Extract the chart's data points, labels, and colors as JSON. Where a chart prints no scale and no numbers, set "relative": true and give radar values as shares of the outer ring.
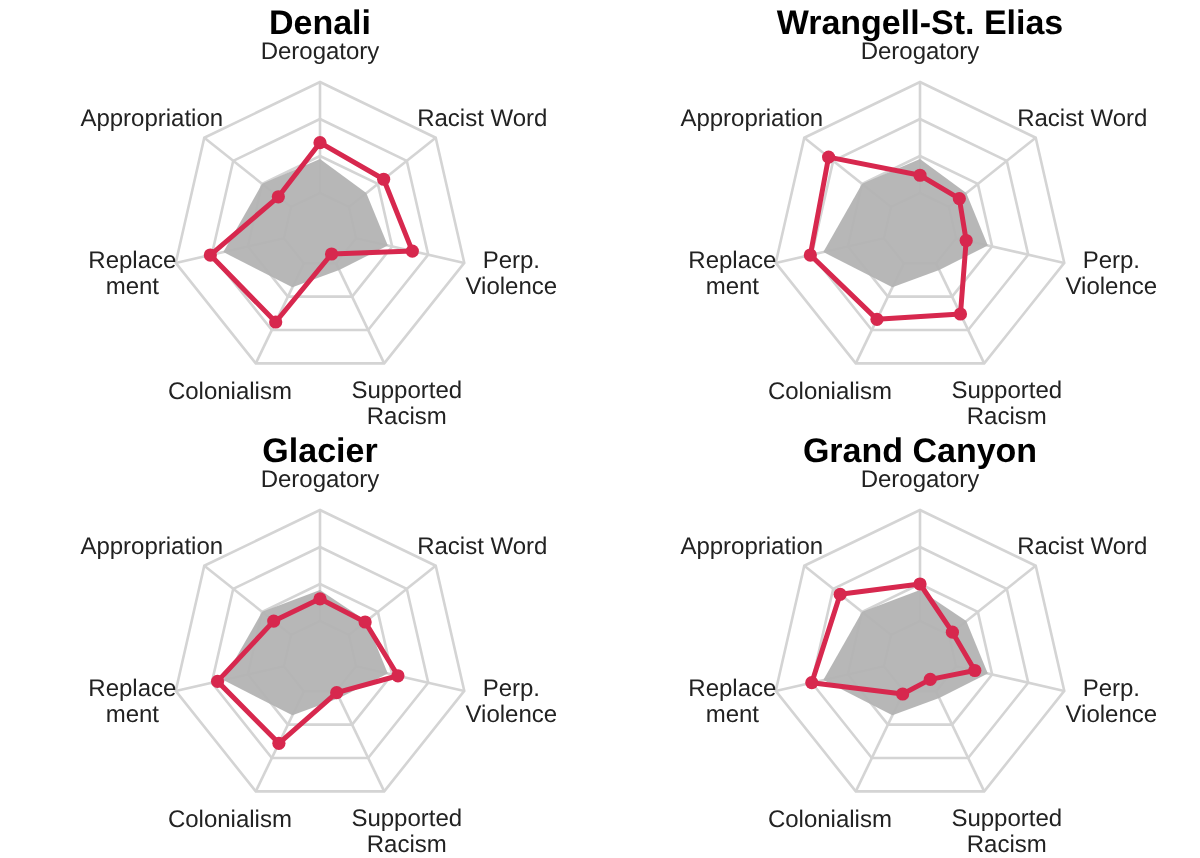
{
  "chart_data": [
    {
      "type": "radar",
      "title": "Denali",
      "relative": true,
      "grid": true,
      "categories": [
        "Derogatory",
        "Racist Word",
        "Perp.\nViolence",
        "Supported\nRacism",
        "Colonialism",
        "Replace\nment",
        "Appropriation"
      ],
      "series": [
        {
          "type": "area",
          "color": "#b3b3b3",
          "marker": "none",
          "values": [
            0.48,
            0.4,
            0.47,
            0.3,
            0.43,
            0.67,
            0.5
          ]
        },
        {
          "color": "#d7284e",
          "marker": "circle",
          "values": [
            0.59,
            0.55,
            0.64,
            0.18,
            0.69,
            0.76,
            0.36
          ]
        }
      ]
    },
    {
      "type": "radar",
      "title": "Wrangell-St. Elias",
      "relative": true,
      "grid": true,
      "categories": [
        "Derogatory",
        "Racist Word",
        "Perp.\nViolence",
        "Supported\nRacism",
        "Colonialism",
        "Replace\nment",
        "Appropriation"
      ],
      "series": [
        {
          "type": "area",
          "color": "#b3b3b3",
          "marker": "none",
          "values": [
            0.48,
            0.4,
            0.47,
            0.3,
            0.43,
            0.67,
            0.5
          ]
        },
        {
          "color": "#d7284e",
          "marker": "circle",
          "values": [
            0.37,
            0.34,
            0.32,
            0.63,
            0.67,
            0.76,
            0.79
          ]
        }
      ]
    },
    {
      "type": "radar",
      "title": "Glacier",
      "relative": true,
      "grid": true,
      "categories": [
        "Derogatory",
        "Racist Word",
        "Perp.\nViolence",
        "Supported\nRacism",
        "Colonialism",
        "Replace\nment",
        "Appropriation"
      ],
      "series": [
        {
          "type": "area",
          "color": "#b3b3b3",
          "marker": "none",
          "values": [
            0.46,
            0.4,
            0.47,
            0.3,
            0.43,
            0.67,
            0.5
          ]
        },
        {
          "color": "#d7284e",
          "marker": "circle",
          "values": [
            0.4,
            0.39,
            0.54,
            0.26,
            0.64,
            0.71,
            0.4
          ]
        }
      ]
    },
    {
      "type": "radar",
      "title": "Grand Canyon",
      "relative": true,
      "grid": true,
      "categories": [
        "Derogatory",
        "Racist Word",
        "Perp.\nViolence",
        "Supported\nRacism",
        "Colonialism",
        "Replace\nment",
        "Appropriation"
      ],
      "series": [
        {
          "type": "area",
          "color": "#b3b3b3",
          "marker": "none",
          "values": [
            0.46,
            0.4,
            0.47,
            0.3,
            0.43,
            0.67,
            0.5
          ]
        },
        {
          "color": "#d7284e",
          "marker": "circle",
          "values": [
            0.5,
            0.28,
            0.38,
            0.16,
            0.27,
            0.75,
            0.69
          ]
        }
      ]
    }
  ]
}
